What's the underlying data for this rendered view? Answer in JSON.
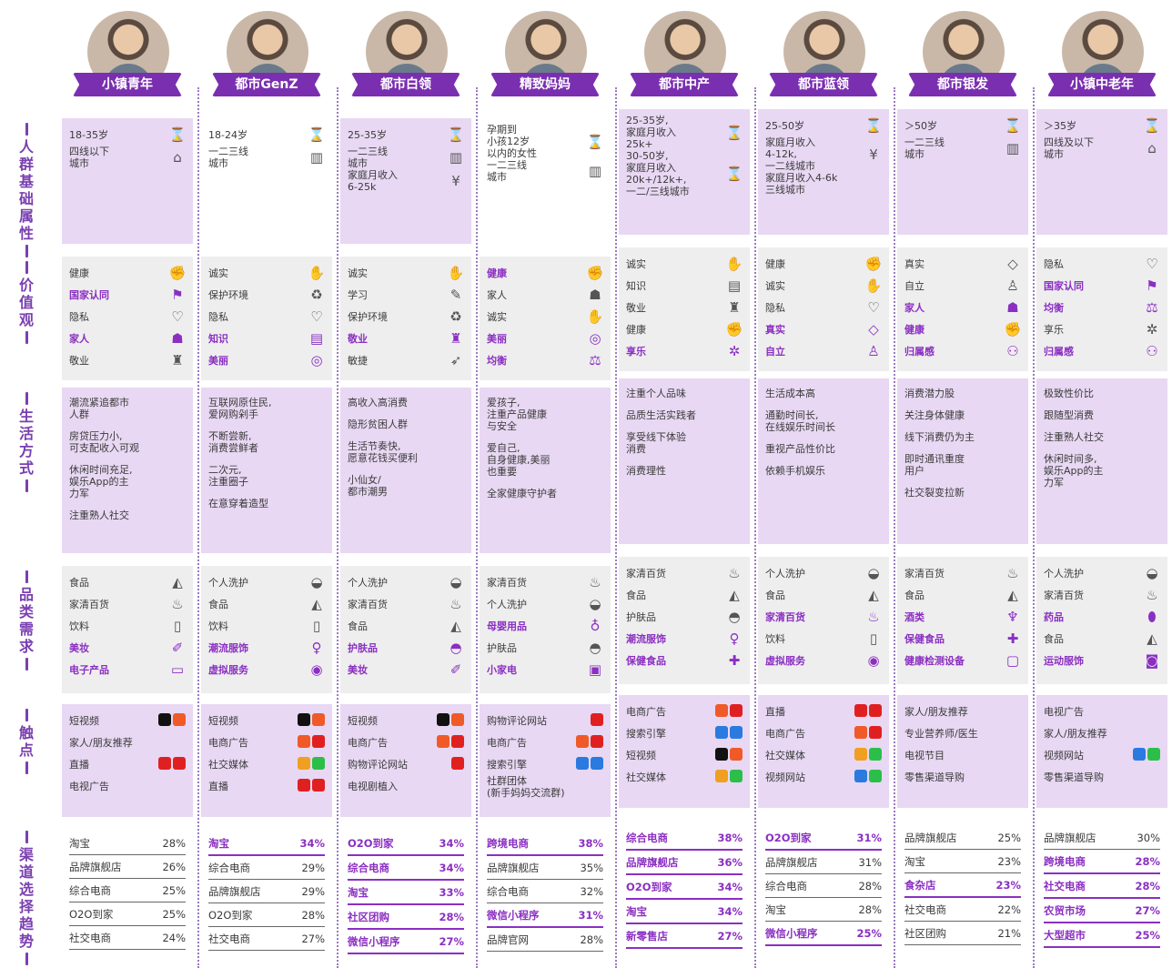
{
  "row_labels": [
    {
      "id": "basic",
      "text": "人群基础属性"
    },
    {
      "id": "values",
      "text": "价值观"
    },
    {
      "id": "life",
      "text": "生活方式"
    },
    {
      "id": "category",
      "text": "品类需求"
    },
    {
      "id": "touch",
      "text": "触点"
    },
    {
      "id": "channel",
      "text": "渠道选择趋势"
    }
  ],
  "colors": {
    "accent": "#8b2fc2",
    "tag_bg": "#7a2fb0",
    "purple_panel": "#e8d8f3",
    "grey_panel": "#eeeeee"
  },
  "segments": [
    {
      "name": "小镇青年",
      "basic": [
        {
          "text": "18-35岁",
          "icon": "hourglass-icon"
        },
        {
          "text": "四线以下\n城市",
          "icon": "house-icon"
        }
      ],
      "values": [
        {
          "text": "健康",
          "hl": false,
          "icon": "muscle-icon"
        },
        {
          "text": "国家认同",
          "hl": true,
          "icon": "flag-icon"
        },
        {
          "text": "隐私",
          "hl": false,
          "icon": "hands-icon"
        },
        {
          "text": "家人",
          "hl": true,
          "icon": "family-icon"
        },
        {
          "text": "敬业",
          "hl": false,
          "icon": "worker-icon"
        }
      ],
      "life": [
        "潮流紧追都市\n人群",
        "房贷压力小,\n可支配收入可观",
        "休闲时间充足,\n娱乐App的主\n力军",
        "注重熟人社交"
      ],
      "category": [
        {
          "text": "食品",
          "hl": false,
          "icon": "food-icon"
        },
        {
          "text": "家清百货",
          "hl": false,
          "icon": "spray-icon"
        },
        {
          "text": "饮料",
          "hl": false,
          "icon": "bottle-icon"
        },
        {
          "text": "美妆",
          "hl": true,
          "icon": "lipstick-icon"
        },
        {
          "text": "电子产品",
          "hl": true,
          "icon": "laptop-icon"
        }
      ],
      "touch": [
        {
          "text": "短视频",
          "icons": [
            "dark",
            "orange"
          ]
        },
        {
          "text": "家人/朋友推荐",
          "icons": []
        },
        {
          "text": "直播",
          "icons": [
            "red",
            "red"
          ]
        },
        {
          "text": "电视广告",
          "icons": []
        }
      ],
      "channel": [
        {
          "name": "淘宝",
          "pct": "28%",
          "hl": false
        },
        {
          "name": "品牌旗舰店",
          "pct": "26%",
          "hl": false
        },
        {
          "name": "综合电商",
          "pct": "25%",
          "hl": false
        },
        {
          "name": "O2O到家",
          "pct": "25%",
          "hl": false
        },
        {
          "name": "社交电商",
          "pct": "24%",
          "hl": false
        }
      ]
    },
    {
      "name": "都市GenZ",
      "basic": [
        {
          "text": "18-24岁",
          "icon": "hourglass-icon"
        },
        {
          "text": "一二三线\n城市",
          "icon": "building-icon"
        }
      ],
      "values": [
        {
          "text": "诚实",
          "hl": false,
          "icon": "handshake-icon"
        },
        {
          "text": "保护环境",
          "hl": false,
          "icon": "eco-icon"
        },
        {
          "text": "隐私",
          "hl": false,
          "icon": "hands-icon"
        },
        {
          "text": "知识",
          "hl": true,
          "icon": "books-icon"
        },
        {
          "text": "美丽",
          "hl": true,
          "icon": "mirror-icon"
        }
      ],
      "life": [
        "互联网原住民,\n爱网购剁手",
        "不断尝新,\n消费尝鲜者",
        "二次元,\n注重圈子",
        "在意穿着造型"
      ],
      "category": [
        {
          "text": "个人洗护",
          "hl": false,
          "icon": "soap-icon"
        },
        {
          "text": "食品",
          "hl": false,
          "icon": "food-icon"
        },
        {
          "text": "饮料",
          "hl": false,
          "icon": "bottle-icon"
        },
        {
          "text": "潮流服饰",
          "hl": true,
          "icon": "dress-icon"
        },
        {
          "text": "虚拟服务",
          "hl": true,
          "icon": "live-icon"
        }
      ],
      "touch": [
        {
          "text": "短视频",
          "icons": [
            "dark",
            "orange"
          ]
        },
        {
          "text": "电商广告",
          "icons": [
            "orange",
            "red"
          ]
        },
        {
          "text": "社交媒体",
          "icons": [
            "yellow",
            "green"
          ]
        },
        {
          "text": "直播",
          "icons": [
            "red",
            "red"
          ]
        }
      ],
      "channel": [
        {
          "name": "淘宝",
          "pct": "34%",
          "hl": true
        },
        {
          "name": "综合电商",
          "pct": "29%",
          "hl": false
        },
        {
          "name": "品牌旗舰店",
          "pct": "29%",
          "hl": false
        },
        {
          "name": "O2O到家",
          "pct": "28%",
          "hl": false
        },
        {
          "name": "社交电商",
          "pct": "27%",
          "hl": false
        }
      ]
    },
    {
      "name": "都市白领",
      "basic": [
        {
          "text": "25-35岁",
          "icon": "hourglass-icon"
        },
        {
          "text": "一二三线\n城市",
          "icon": "building-icon"
        },
        {
          "text": "家庭月收入\n6-25k",
          "icon": "money-icon"
        }
      ],
      "values": [
        {
          "text": "诚实",
          "hl": false,
          "icon": "handshake-icon"
        },
        {
          "text": "学习",
          "hl": false,
          "icon": "study-icon"
        },
        {
          "text": "保护环境",
          "hl": false,
          "icon": "eco-icon"
        },
        {
          "text": "敬业",
          "hl": true,
          "icon": "worker-icon"
        },
        {
          "text": "敏捷",
          "hl": false,
          "icon": "run-icon"
        }
      ],
      "life": [
        "高收入高消费",
        "隐形贫困人群",
        "生活节奏快,\n愿意花钱买便利",
        "小仙女/\n都市潮男"
      ],
      "category": [
        {
          "text": "个人洗护",
          "hl": false,
          "icon": "soap-icon"
        },
        {
          "text": "家清百货",
          "hl": false,
          "icon": "spray-icon"
        },
        {
          "text": "食品",
          "hl": false,
          "icon": "food-icon"
        },
        {
          "text": "护肤品",
          "hl": true,
          "icon": "cream-icon"
        },
        {
          "text": "美妆",
          "hl": true,
          "icon": "lipstick-icon"
        }
      ],
      "touch": [
        {
          "text": "短视频",
          "icons": [
            "dark",
            "orange"
          ]
        },
        {
          "text": "电商广告",
          "icons": [
            "orange",
            "red"
          ]
        },
        {
          "text": "购物评论网站",
          "icons": [
            "red"
          ]
        },
        {
          "text": "电视剧植入",
          "icons": []
        }
      ],
      "channel": [
        {
          "name": "O2O到家",
          "pct": "34%",
          "hl": true
        },
        {
          "name": "综合电商",
          "pct": "34%",
          "hl": true
        },
        {
          "name": "淘宝",
          "pct": "33%",
          "hl": true
        },
        {
          "name": "社区团购",
          "pct": "28%",
          "hl": true
        },
        {
          "name": "微信小程序",
          "pct": "27%",
          "hl": true
        }
      ]
    },
    {
      "name": "精致妈妈",
      "basic": [
        {
          "text": "孕期到\n小孩12岁\n以内的女性",
          "icon": "hourglass-icon"
        },
        {
          "text": "一二三线\n城市",
          "icon": "building-icon"
        }
      ],
      "values": [
        {
          "text": "健康",
          "hl": true,
          "icon": "muscle-icon"
        },
        {
          "text": "家人",
          "hl": false,
          "icon": "family-icon"
        },
        {
          "text": "诚实",
          "hl": false,
          "icon": "handshake-icon"
        },
        {
          "text": "美丽",
          "hl": true,
          "icon": "mirror-icon"
        },
        {
          "text": "均衡",
          "hl": true,
          "icon": "scale-icon"
        }
      ],
      "life": [
        "爱孩子,\n注重产品健康\n与安全",
        "爱自己,\n自身健康,美丽\n也重要",
        "全家健康守护者"
      ],
      "category": [
        {
          "text": "家清百货",
          "hl": false,
          "icon": "spray-icon"
        },
        {
          "text": "个人洗护",
          "hl": false,
          "icon": "soap-icon"
        },
        {
          "text": "母婴用品",
          "hl": true,
          "icon": "baby-bottle-icon"
        },
        {
          "text": "护肤品",
          "hl": false,
          "icon": "cream-icon"
        },
        {
          "text": "小家电",
          "hl": true,
          "icon": "appliance-icon"
        }
      ],
      "touch": [
        {
          "text": "购物评论网站",
          "icons": [
            "red"
          ]
        },
        {
          "text": "电商广告",
          "icons": [
            "orange",
            "red"
          ]
        },
        {
          "text": "搜索引擎",
          "icons": [
            "blue",
            "blue"
          ]
        },
        {
          "text": "社群团体\n(新手妈妈交流群)",
          "icons": []
        }
      ],
      "channel": [
        {
          "name": "跨境电商",
          "pct": "38%",
          "hl": true
        },
        {
          "name": "品牌旗舰店",
          "pct": "35%",
          "hl": false
        },
        {
          "name": "综合电商",
          "pct": "32%",
          "hl": false
        },
        {
          "name": "微信小程序",
          "pct": "31%",
          "hl": true
        },
        {
          "name": "品牌官网",
          "pct": "28%",
          "hl": false
        }
      ]
    },
    {
      "name": "都市中产",
      "basic": [
        {
          "text": "25-35岁,\n家庭月收入\n25k+",
          "icon": "hourglass-icon"
        },
        {
          "text": "30-50岁,\n家庭月收入\n20k+/12k+,\n一二/三线城市",
          "icon": "hourglass-icon"
        }
      ],
      "values": [
        {
          "text": "诚实",
          "hl": false,
          "icon": "handshake-icon"
        },
        {
          "text": "知识",
          "hl": false,
          "icon": "books-icon"
        },
        {
          "text": "敬业",
          "hl": false,
          "icon": "worker-icon"
        },
        {
          "text": "健康",
          "hl": false,
          "icon": "muscle-icon"
        },
        {
          "text": "享乐",
          "hl": true,
          "icon": "palm-icon"
        }
      ],
      "life": [
        "注重个人品味",
        "品质生活实践者",
        "享受线下体验\n消费",
        "消费理性"
      ],
      "category": [
        {
          "text": "家清百货",
          "hl": false,
          "icon": "spray-icon"
        },
        {
          "text": "食品",
          "hl": false,
          "icon": "food-icon"
        },
        {
          "text": "护肤品",
          "hl": false,
          "icon": "cream-icon"
        },
        {
          "text": "潮流服饰",
          "hl": true,
          "icon": "dress-icon"
        },
        {
          "text": "保健食品",
          "hl": true,
          "icon": "health-food-icon"
        }
      ],
      "touch": [
        {
          "text": "电商广告",
          "icons": [
            "orange",
            "red"
          ]
        },
        {
          "text": "搜索引擎",
          "icons": [
            "blue",
            "blue"
          ]
        },
        {
          "text": "短视频",
          "icons": [
            "dark",
            "orange"
          ]
        },
        {
          "text": "社交媒体",
          "icons": [
            "yellow",
            "green"
          ]
        }
      ],
      "channel": [
        {
          "name": "综合电商",
          "pct": "38%",
          "hl": true
        },
        {
          "name": "品牌旗舰店",
          "pct": "36%",
          "hl": true
        },
        {
          "name": "O2O到家",
          "pct": "34%",
          "hl": true
        },
        {
          "name": "淘宝",
          "pct": "34%",
          "hl": true
        },
        {
          "name": "新零售店",
          "pct": "27%",
          "hl": true
        }
      ]
    },
    {
      "name": "都市蓝领",
      "basic": [
        {
          "text": "25-50岁",
          "icon": "hourglass-icon"
        },
        {
          "text": "家庭月收入\n4-12k,\n一二线城市",
          "icon": "money-icon"
        },
        {
          "text": "家庭月收入4-6k\n三线城市",
          "icon": ""
        }
      ],
      "values": [
        {
          "text": "健康",
          "hl": false,
          "icon": "muscle-icon"
        },
        {
          "text": "诚实",
          "hl": false,
          "icon": "handshake-icon"
        },
        {
          "text": "隐私",
          "hl": false,
          "icon": "hands-icon"
        },
        {
          "text": "真实",
          "hl": true,
          "icon": "diamond-icon"
        },
        {
          "text": "自立",
          "hl": true,
          "icon": "self-icon"
        }
      ],
      "life": [
        "生活成本高",
        "通勤时间长,\n在线娱乐时间长",
        "重视产品性价比",
        "依赖手机娱乐"
      ],
      "category": [
        {
          "text": "个人洗护",
          "hl": false,
          "icon": "soap-icon"
        },
        {
          "text": "食品",
          "hl": false,
          "icon": "food-icon"
        },
        {
          "text": "家清百货",
          "hl": true,
          "icon": "spray-icon"
        },
        {
          "text": "饮料",
          "hl": false,
          "icon": "bottle-icon"
        },
        {
          "text": "虚拟服务",
          "hl": true,
          "icon": "live-icon"
        }
      ],
      "touch": [
        {
          "text": "直播",
          "icons": [
            "red",
            "red"
          ]
        },
        {
          "text": "电商广告",
          "icons": [
            "orange",
            "red"
          ]
        },
        {
          "text": "社交媒体",
          "icons": [
            "yellow",
            "green"
          ]
        },
        {
          "text": "视频网站",
          "icons": [
            "blue",
            "green"
          ]
        }
      ],
      "channel": [
        {
          "name": "O2O到家",
          "pct": "31%",
          "hl": true
        },
        {
          "name": "品牌旗舰店",
          "pct": "31%",
          "hl": false
        },
        {
          "name": "综合电商",
          "pct": "28%",
          "hl": false
        },
        {
          "name": "淘宝",
          "pct": "28%",
          "hl": false
        },
        {
          "name": "微信小程序",
          "pct": "25%",
          "hl": true
        }
      ]
    },
    {
      "name": "都市银发",
      "basic": [
        {
          "text": "＞50岁",
          "icon": "hourglass-icon"
        },
        {
          "text": "一二三线\n城市",
          "icon": "building-icon"
        }
      ],
      "values": [
        {
          "text": "真实",
          "hl": false,
          "icon": "diamond-icon"
        },
        {
          "text": "自立",
          "hl": false,
          "icon": "self-icon"
        },
        {
          "text": "家人",
          "hl": true,
          "icon": "family-icon"
        },
        {
          "text": "健康",
          "hl": true,
          "icon": "muscle-icon"
        },
        {
          "text": "归属感",
          "hl": true,
          "icon": "group-icon"
        }
      ],
      "life": [
        "消费潜力股",
        "关注身体健康",
        "线下消费仍为主",
        "即时通讯重度\n用户",
        "社交裂变拉新"
      ],
      "category": [
        {
          "text": "家清百货",
          "hl": false,
          "icon": "spray-icon"
        },
        {
          "text": "食品",
          "hl": false,
          "icon": "food-icon"
        },
        {
          "text": "酒类",
          "hl": true,
          "icon": "wine-icon"
        },
        {
          "text": "保健食品",
          "hl": true,
          "icon": "health-food-icon"
        },
        {
          "text": "健康检测设备",
          "hl": true,
          "icon": "monitor-icon"
        }
      ],
      "touch": [
        {
          "text": "家人/朋友推荐",
          "icons": []
        },
        {
          "text": "专业营养师/医生",
          "icons": []
        },
        {
          "text": "电视节目",
          "icons": []
        },
        {
          "text": "零售渠道导购",
          "icons": []
        }
      ],
      "channel": [
        {
          "name": "品牌旗舰店",
          "pct": "25%",
          "hl": false
        },
        {
          "name": "淘宝",
          "pct": "23%",
          "hl": false
        },
        {
          "name": "食杂店",
          "pct": "23%",
          "hl": true
        },
        {
          "name": "社交电商",
          "pct": "22%",
          "hl": false
        },
        {
          "name": "社区团购",
          "pct": "21%",
          "hl": false
        }
      ]
    },
    {
      "name": "小镇中老年",
      "basic": [
        {
          "text": "＞35岁",
          "icon": "hourglass-icon"
        },
        {
          "text": "四线及以下\n城市",
          "icon": "house-icon"
        }
      ],
      "values": [
        {
          "text": "隐私",
          "hl": false,
          "icon": "hands-icon"
        },
        {
          "text": "国家认同",
          "hl": true,
          "icon": "flag-icon"
        },
        {
          "text": "均衡",
          "hl": true,
          "icon": "scale-icon"
        },
        {
          "text": "享乐",
          "hl": false,
          "icon": "palm-icon"
        },
        {
          "text": "归属感",
          "hl": true,
          "icon": "group-icon"
        }
      ],
      "life": [
        "极致性价比",
        "跟随型消费",
        "注重熟人社交",
        "休闲时间多,\n娱乐App的主\n力军"
      ],
      "category": [
        {
          "text": "个人洗护",
          "hl": false,
          "icon": "soap-icon"
        },
        {
          "text": "家清百货",
          "hl": false,
          "icon": "spray-icon"
        },
        {
          "text": "药品",
          "hl": true,
          "icon": "pill-icon"
        },
        {
          "text": "食品",
          "hl": false,
          "icon": "food-icon"
        },
        {
          "text": "运动服饰",
          "hl": true,
          "icon": "shirt-icon"
        }
      ],
      "touch": [
        {
          "text": "电视广告",
          "icons": []
        },
        {
          "text": "家人/朋友推荐",
          "icons": []
        },
        {
          "text": "视频网站",
          "icons": [
            "blue",
            "green"
          ]
        },
        {
          "text": "零售渠道导购",
          "icons": []
        }
      ],
      "channel": [
        {
          "name": "品牌旗舰店",
          "pct": "30%",
          "hl": false
        },
        {
          "name": "跨境电商",
          "pct": "28%",
          "hl": true
        },
        {
          "name": "社交电商",
          "pct": "28%",
          "hl": true
        },
        {
          "name": "农贸市场",
          "pct": "27%",
          "hl": true
        },
        {
          "name": "大型超市",
          "pct": "25%",
          "hl": true
        }
      ]
    }
  ]
}
